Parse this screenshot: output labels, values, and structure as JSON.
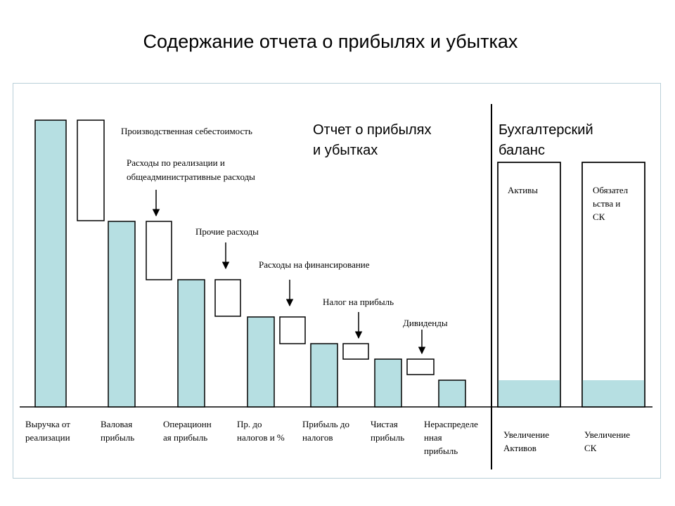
{
  "title": "Содержание отчета о прибылях и убытках",
  "colors": {
    "bar_fill": "#b6dfe2",
    "frame_border": "#b9cfd8",
    "stroke": "#000000"
  },
  "section_pl": [
    "Отчет о прибылях",
    "и убытках"
  ],
  "section_bs": [
    "Бухгалтерский",
    "баланс"
  ],
  "deductions": {
    "cogs": [
      "Производственная себестоимость"
    ],
    "selling": [
      "Расходы по реализации и",
      "общеадминистративные расходы"
    ],
    "other": [
      "Прочие расходы"
    ],
    "financing": [
      "Расходы на финансирование"
    ],
    "tax": [
      "Налог на прибыль"
    ],
    "dividends": [
      "Дивиденды"
    ]
  },
  "bars": {
    "revenue": [
      "Выручка от",
      "реализации"
    ],
    "gross_profit": [
      "Валовая",
      "прибыль"
    ],
    "operating_profit": [
      "Операционн",
      "ая прибыль"
    ],
    "pbit": [
      "Пр. до",
      "налогов и %"
    ],
    "pbt": [
      "Прибыль до",
      "налогов"
    ],
    "net_profit": [
      "Чистая",
      "прибыль"
    ],
    "retained": [
      "Нераспределе",
      "нная",
      "прибыль"
    ]
  },
  "balance": {
    "assets_label": [
      "Активы"
    ],
    "liabilities_label": [
      "Обязател",
      "ьства и",
      "СК"
    ],
    "assets_increase": [
      "Увеличение",
      "Активов"
    ],
    "equity_increase": [
      "Увеличение",
      "СК"
    ]
  }
}
